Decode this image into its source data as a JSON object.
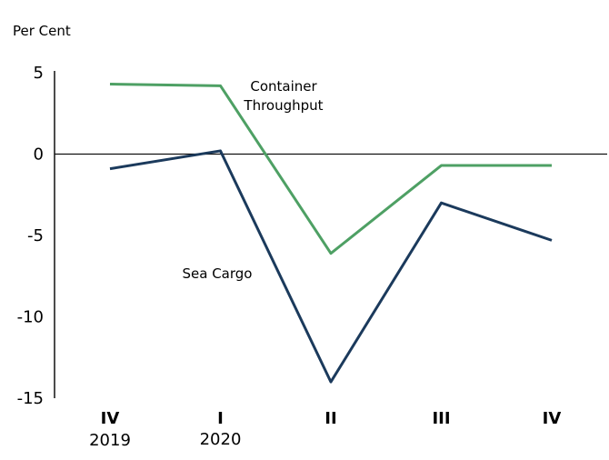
{
  "chart_data": {
    "type": "line",
    "unit_label": "Per Cent",
    "categories": [
      {
        "quarter": "IV",
        "year": "2019"
      },
      {
        "quarter": "I",
        "year": "2020"
      },
      {
        "quarter": "II",
        "year": ""
      },
      {
        "quarter": "III",
        "year": ""
      },
      {
        "quarter": "IV",
        "year": ""
      }
    ],
    "yticks": [
      "5",
      "0",
      "-5",
      "-10",
      "-15"
    ],
    "ylim": [
      -15,
      5
    ],
    "series": [
      {
        "name": "Container Throughput",
        "label_lines": [
          "Container",
          "Throughput"
        ],
        "color": "#4ea064",
        "values": [
          4.3,
          4.2,
          -6.1,
          -0.7,
          -0.7
        ]
      },
      {
        "name": "Sea Cargo",
        "label_lines": [
          "Sea Cargo"
        ],
        "color": "#1b3a5c",
        "values": [
          -0.9,
          0.2,
          -14.0,
          -3.0,
          -5.3
        ]
      }
    ],
    "zero_line": true
  }
}
